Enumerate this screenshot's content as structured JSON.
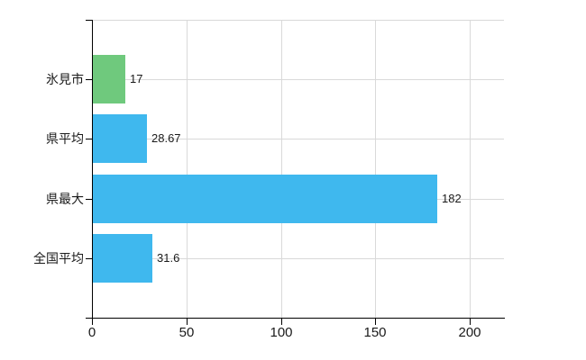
{
  "chart_data": {
    "type": "bar",
    "orientation": "horizontal",
    "title": "",
    "categories": [
      "氷見市",
      "県平均",
      "県最大",
      "全国平均"
    ],
    "values": [
      17,
      28.67,
      182,
      31.6
    ],
    "value_labels": [
      "17",
      "28.67",
      "182",
      "31.6"
    ],
    "bar_colors": [
      "#6FC97D",
      "#3FB8EE",
      "#3FB8EE",
      "#3FB8EE"
    ],
    "x_tick_labels": [
      "0",
      "50",
      "100",
      "150",
      "200"
    ],
    "x_tick_values": [
      0,
      50,
      100,
      150,
      200
    ],
    "xlim": [
      0,
      218
    ],
    "grid": true,
    "legend": false
  },
  "colors": {
    "background": "#ffffff",
    "grid": "#d9d9d9",
    "axis": "#000000",
    "text": "#1a1a1a",
    "bar_blue": "#3FB8EE",
    "bar_green": "#6FC97D"
  }
}
